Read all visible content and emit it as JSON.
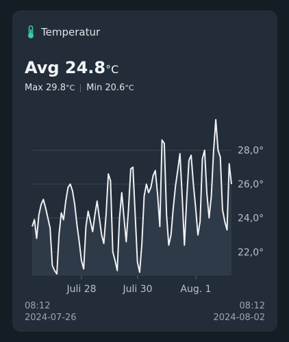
{
  "card": {
    "title": "Temperatur",
    "icon": "thermometer-icon",
    "accent_color": "#3ec9a0",
    "avg_label": "Avg",
    "avg_value": "24.8",
    "unit": "°C",
    "max_label": "Max",
    "max_value": "29.8",
    "min_label": "Min",
    "min_value": "20.6"
  },
  "range": {
    "start_time": "08:12",
    "start_date": "2024-07-26",
    "end_time": "08:12",
    "end_date": "2024-08-02"
  },
  "chart_data": {
    "type": "line",
    "title": "",
    "xlabel": "",
    "ylabel": "",
    "x_tick_labels": [
      "Juli 28",
      "Juli 30",
      "Aug. 1"
    ],
    "y_tick_labels": [
      "22,0°",
      "24,0°",
      "26,0°",
      "28,0°"
    ],
    "y_ticks": [
      22,
      24,
      26,
      28
    ],
    "ylim": [
      20.6,
      29.8
    ],
    "grid": true,
    "line_color": "#f0f2f4",
    "series": [
      {
        "values": [
          23.5,
          23.9,
          22.8,
          24.2,
          24.8,
          25.1,
          24.6,
          24.0,
          23.4,
          21.2,
          20.9,
          20.7,
          23.0,
          24.3,
          23.9,
          25.0,
          25.8,
          26.0,
          25.6,
          24.8,
          23.6,
          22.6,
          21.5,
          21.0,
          23.5,
          24.4,
          23.8,
          23.2,
          24.2,
          25.0,
          24.0,
          23.0,
          22.5,
          24.2,
          26.6,
          26.2,
          22.0,
          21.5,
          20.9,
          24.0,
          25.5,
          24.0,
          22.6,
          24.5,
          26.9,
          27.0,
          24.2,
          21.4,
          20.8,
          22.5,
          25.3,
          26.0,
          25.5,
          25.8,
          26.5,
          26.8,
          25.4,
          23.5,
          28.6,
          28.4,
          24.2,
          22.4,
          23.0,
          24.6,
          25.9,
          26.8,
          27.8,
          25.2,
          22.4,
          25.1,
          27.4,
          27.7,
          26.0,
          24.6,
          23.0,
          23.8,
          27.5,
          28.0,
          25.5,
          24.0,
          25.3,
          27.9,
          29.8,
          28.0,
          27.6,
          24.5,
          23.8,
          23.3,
          27.2,
          26.0
        ]
      }
    ]
  }
}
